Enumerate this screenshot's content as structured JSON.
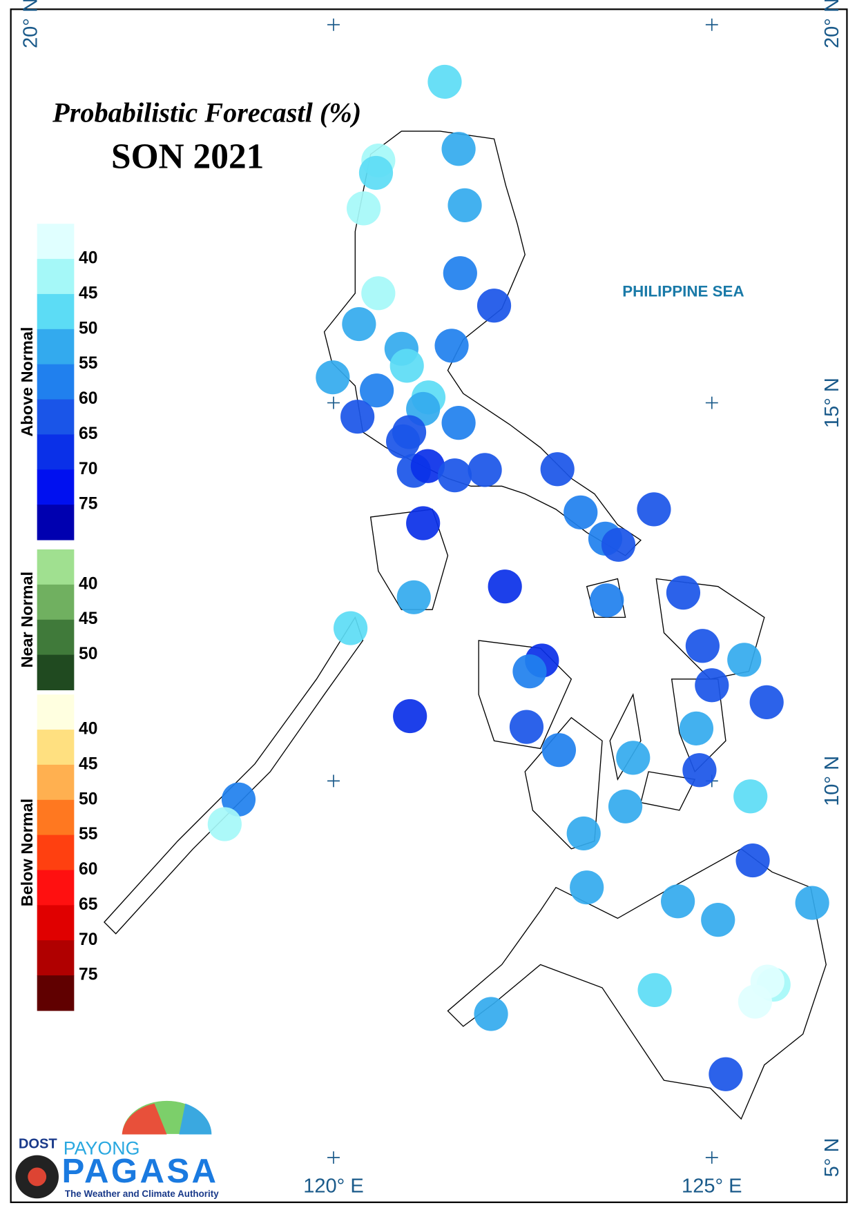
{
  "header": {
    "title": "Probabilistic Forecastl (%)",
    "subtitle": "SON 2021"
  },
  "legend": [
    {
      "title": "Above Normal",
      "labels": [
        "40",
        "45",
        "50",
        "55",
        "60",
        "65",
        "70",
        "75"
      ],
      "colors": [
        "#e0ffff",
        "#a5f8f8",
        "#5cdcf5",
        "#33aaee",
        "#2080ee",
        "#1a55e8",
        "#0a30e8",
        "#0010f0",
        "#0000b0"
      ]
    },
    {
      "title": "Near Normal",
      "labels": [
        "40",
        "45",
        "50"
      ],
      "colors": [
        "#a0e090",
        "#70b060",
        "#407a3a",
        "#204a20"
      ]
    },
    {
      "title": "Below Normal",
      "labels": [
        "40",
        "45",
        "50",
        "55",
        "60",
        "65",
        "70",
        "75"
      ],
      "colors": [
        "#ffffe0",
        "#ffe080",
        "#ffb050",
        "#ff7820",
        "#ff4010",
        "#ff1010",
        "#e00000",
        "#b00000",
        "#600000"
      ]
    }
  ],
  "map": {
    "sea_label": "PHILIPPINE SEA",
    "lat_labels": [
      "20° N",
      "15° N",
      "10° N",
      "5° N"
    ],
    "lon_labels": [
      "120° E",
      "125° E"
    ]
  },
  "logo": {
    "agency": "DOST",
    "line1": "PAYONG",
    "line2": "PAGASA",
    "tagline": "The Weather and Climate Authority"
  }
}
